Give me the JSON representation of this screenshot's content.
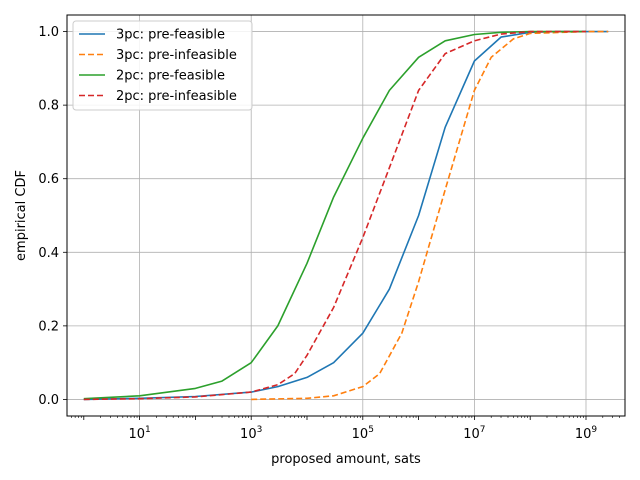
{
  "chart_data": {
    "type": "line",
    "xlabel": "proposed amount, sats",
    "ylabel": "empirical CDF",
    "xscale": "log",
    "xlim": [
      0.5,
      5000000000.0
    ],
    "ylim": [
      -0.045,
      1.045
    ],
    "grid": true,
    "legend_position": "top-left",
    "x_ticks": [
      10,
      1000,
      100000,
      10000000,
      1000000000
    ],
    "x_tick_labels": [
      {
        "base": "10",
        "exp": "1"
      },
      {
        "base": "10",
        "exp": "3"
      },
      {
        "base": "10",
        "exp": "5"
      },
      {
        "base": "10",
        "exp": "7"
      },
      {
        "base": "10",
        "exp": "9"
      }
    ],
    "y_ticks": [
      0.0,
      0.2,
      0.4,
      0.6,
      0.8,
      1.0
    ],
    "y_tick_labels": [
      "0.0",
      "0.2",
      "0.4",
      "0.6",
      "0.8",
      "1.0"
    ],
    "series": [
      {
        "name": "3pc: pre-feasible",
        "color": "#1f77b4",
        "dash": "solid",
        "x": [
          1,
          10,
          100,
          1000,
          3000,
          10000,
          30000,
          100000,
          300000,
          1000000,
          3000000,
          10000000,
          30000000,
          100000000,
          300000000,
          1000000000,
          2500000000
        ],
        "y": [
          0.0,
          0.003,
          0.008,
          0.02,
          0.035,
          0.06,
          0.1,
          0.18,
          0.3,
          0.5,
          0.74,
          0.92,
          0.985,
          0.998,
          1.0,
          1.0,
          1.0
        ]
      },
      {
        "name": "3pc: pre-infeasible",
        "color": "#ff7f0e",
        "dash": "dashed",
        "x": [
          1000,
          10000,
          30000,
          100000,
          200000,
          500000,
          1000000,
          3000000,
          10000000,
          20000000,
          50000000,
          100000000,
          1000000000,
          2500000000
        ],
        "y": [
          0.0,
          0.003,
          0.01,
          0.035,
          0.07,
          0.18,
          0.32,
          0.57,
          0.84,
          0.93,
          0.98,
          0.995,
          1.0,
          1.0
        ]
      },
      {
        "name": "2pc: pre-feasible",
        "color": "#2ca02c",
        "dash": "solid",
        "x": [
          1,
          10,
          100,
          300,
          1000,
          3000,
          10000,
          30000,
          100000,
          300000,
          1000000,
          3000000,
          10000000,
          30000000,
          100000000,
          1000000000
        ],
        "y": [
          0.002,
          0.01,
          0.03,
          0.05,
          0.1,
          0.2,
          0.37,
          0.55,
          0.71,
          0.84,
          0.93,
          0.975,
          0.992,
          0.998,
          1.0,
          1.0
        ]
      },
      {
        "name": "2pc: pre-infeasible",
        "color": "#d62728",
        "dash": "dashed",
        "x": [
          1,
          10,
          100,
          1000,
          3000,
          6000,
          10000,
          30000,
          100000,
          300000,
          1000000,
          3000000,
          10000000,
          30000000,
          100000000,
          1000000000
        ],
        "y": [
          0.0,
          0.002,
          0.007,
          0.02,
          0.04,
          0.07,
          0.12,
          0.25,
          0.44,
          0.63,
          0.84,
          0.94,
          0.975,
          0.993,
          1.0,
          1.0
        ]
      }
    ]
  }
}
